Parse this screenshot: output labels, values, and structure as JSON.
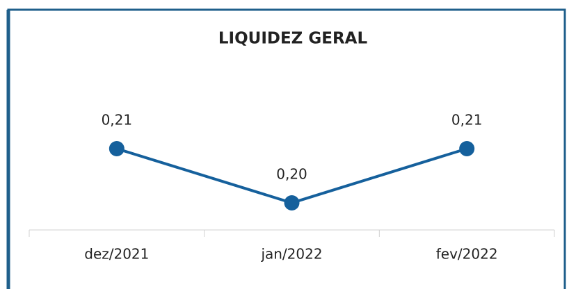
{
  "chart_data": {
    "type": "line",
    "title": "LIQUIDEZ GERAL",
    "categories": [
      "dez/2021",
      "jan/2022",
      "fev/2022"
    ],
    "series": [
      {
        "name": null,
        "color": "#15609c",
        "values": [
          0.21,
          0.2,
          0.21
        ],
        "value_labels": [
          "0,21",
          "0,20",
          "0,21"
        ]
      }
    ],
    "ylim": [
      0.195,
      0.215
    ]
  }
}
